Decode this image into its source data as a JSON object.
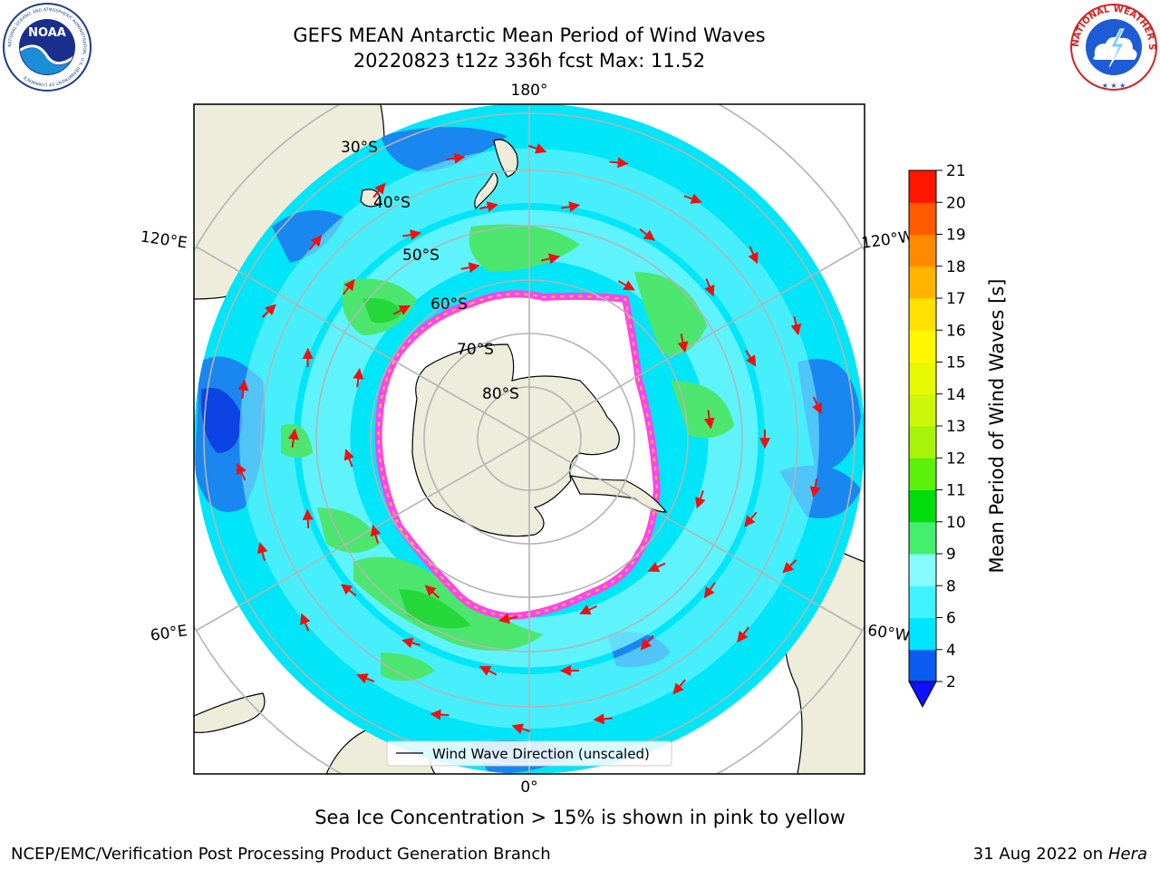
{
  "header": {
    "title_line1": "GEFS MEAN Antarctic Mean Period of Wind Waves",
    "title_line2": "20220823 t12z 336h fcst   Max: 11.52"
  },
  "logos": {
    "noaa_text": "NOAA",
    "noaa_ring_text": "NATIONAL OCEANIC AND ATMOSPHERIC ADMINISTRATION · U.S. DEPARTMENT OF COMMERCE",
    "nws_ring_text": "NATIONAL WEATHER SERVICE"
  },
  "map": {
    "projection": "south-polar-stereographic",
    "longitude_labels": {
      "top": "180°",
      "bottom": "0°",
      "upper_left": "120°E",
      "upper_right": "120°W",
      "lower_left": "60°E",
      "lower_right": "60°W"
    },
    "latitude_labels": [
      "30°S",
      "40°S",
      "50°S",
      "60°S",
      "70°S",
      "80°S"
    ],
    "legend_label": "Wind Wave Direction (unscaled)",
    "colors": {
      "land": "#eeecdb",
      "ocean_base": "#00e5f7",
      "low_period": "#1a86ef",
      "very_low_period": "#0d43e4",
      "mid_period": "#7ff7ff",
      "green_period": "#4ce66e",
      "dark_green_period": "#24d83a",
      "sea_ice": "#ff44ee",
      "sea_ice_edge": "#ffcc22",
      "arrows": "#ee1111",
      "graticule": "#b4b4b4"
    }
  },
  "colorbar": {
    "label": "Mean Period of Wind Waves [s]",
    "ticks": [
      "2",
      "4",
      "6",
      "8",
      "9",
      "10",
      "11",
      "12",
      "13",
      "14",
      "15",
      "16",
      "17",
      "18",
      "19",
      "20",
      "21"
    ],
    "colors": [
      "#0a5bf0",
      "#00e5ff",
      "#3ff3ff",
      "#88fbff",
      "#44ee6e",
      "#00dd0b",
      "#5cf10a",
      "#a8f30a",
      "#cdf70a",
      "#e8f800",
      "#fff700",
      "#ffe100",
      "#ffb400",
      "#ff8a00",
      "#ff5a00",
      "#ff1600"
    ],
    "under_color": "#1010ff"
  },
  "captions": {
    "sea_ice_note": "Sea Ice Concentration > 15% is shown in pink to yellow",
    "footer_left": "NCEP/EMC/Verification Post Processing Product Generation Branch",
    "footer_right_date": "31 Aug 2022 on",
    "footer_right_host": "Hera"
  }
}
